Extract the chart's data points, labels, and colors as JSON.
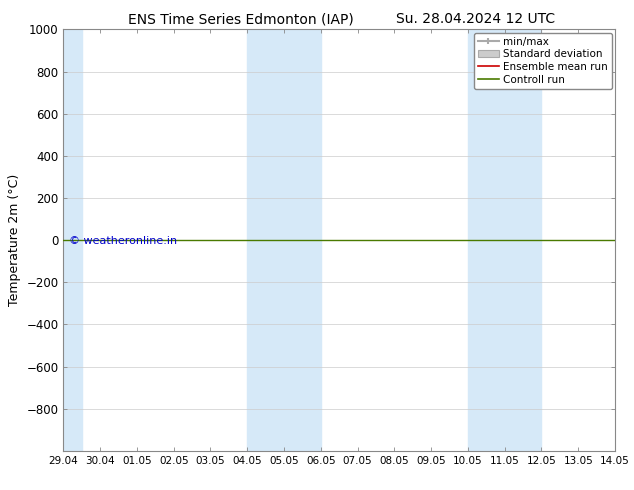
{
  "title": "ENS Time Series Edmonton (IAP)",
  "title2": "Su. 28.04.2024 12 UTC",
  "ylabel": "Temperature 2m (°C)",
  "ylim_top": -1000,
  "ylim_bottom": 1000,
  "yticks": [
    -800,
    -600,
    -400,
    -200,
    0,
    200,
    400,
    600,
    800,
    1000
  ],
  "background_color": "#ffffff",
  "shaded_bands": [
    {
      "x_start": 0,
      "x_end": 0.5
    },
    {
      "x_start": 5,
      "x_end": 7
    },
    {
      "x_start": 11,
      "x_end": 13
    }
  ],
  "shaded_color": "#d6e9f8",
  "control_run_color": "#4a7a00",
  "ensemble_mean_color": "#cc0000",
  "watermark": "© weatheronline.in",
  "watermark_color": "#0000cc",
  "xtick_labels": [
    "29.04",
    "30.04",
    "01.05",
    "02.05",
    "03.05",
    "04.05",
    "05.05",
    "06.05",
    "07.05",
    "08.05",
    "09.05",
    "10.05",
    "11.05",
    "12.05",
    "13.05",
    "14.05"
  ],
  "xtick_positions": [
    0,
    1,
    2,
    3,
    4,
    5,
    6,
    7,
    8,
    9,
    10,
    11,
    12,
    13,
    14,
    15
  ],
  "x_total": 15
}
